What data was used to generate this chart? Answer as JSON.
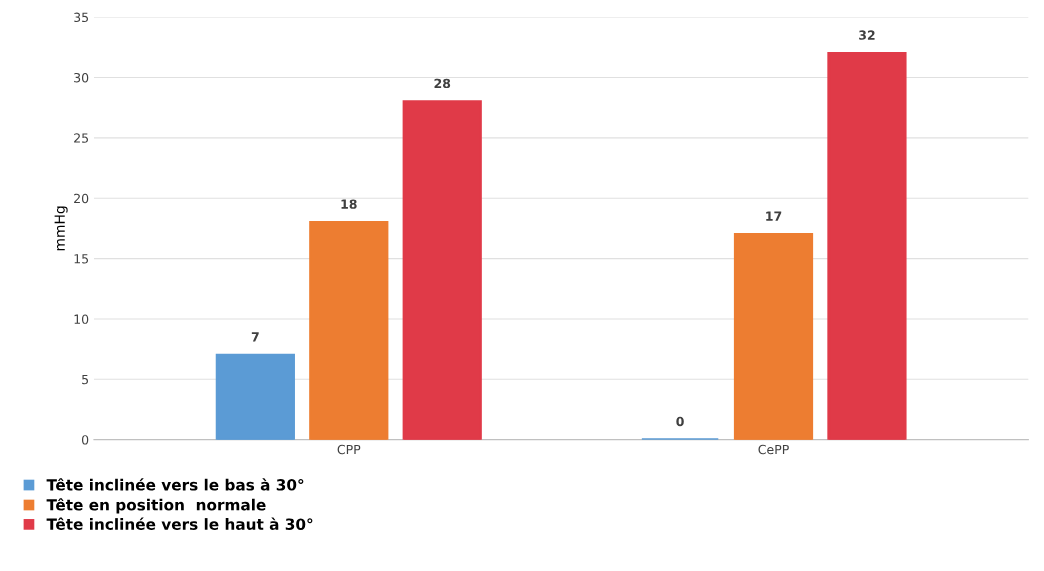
{
  "chart_data": {
    "type": "bar",
    "ylabel": "mmHg",
    "categories": [
      "CPP",
      "CePP"
    ],
    "series": [
      {
        "name": "Tête inclinée vers le bas à 30°",
        "color": "#5b9bd5",
        "values": [
          7,
          0
        ]
      },
      {
        "name": "Tête en position  normale",
        "color": "#ed7d31",
        "values": [
          18,
          17
        ]
      },
      {
        "name": "Tête inclinée vers le haut à 30°",
        "color": "#e03a48",
        "values": [
          28,
          32
        ]
      }
    ],
    "ylim": [
      0,
      35
    ],
    "yticks": [
      0,
      5,
      10,
      15,
      20,
      25,
      30,
      35
    ],
    "grid": "y",
    "legend": "bottom left",
    "data_labels": true
  }
}
